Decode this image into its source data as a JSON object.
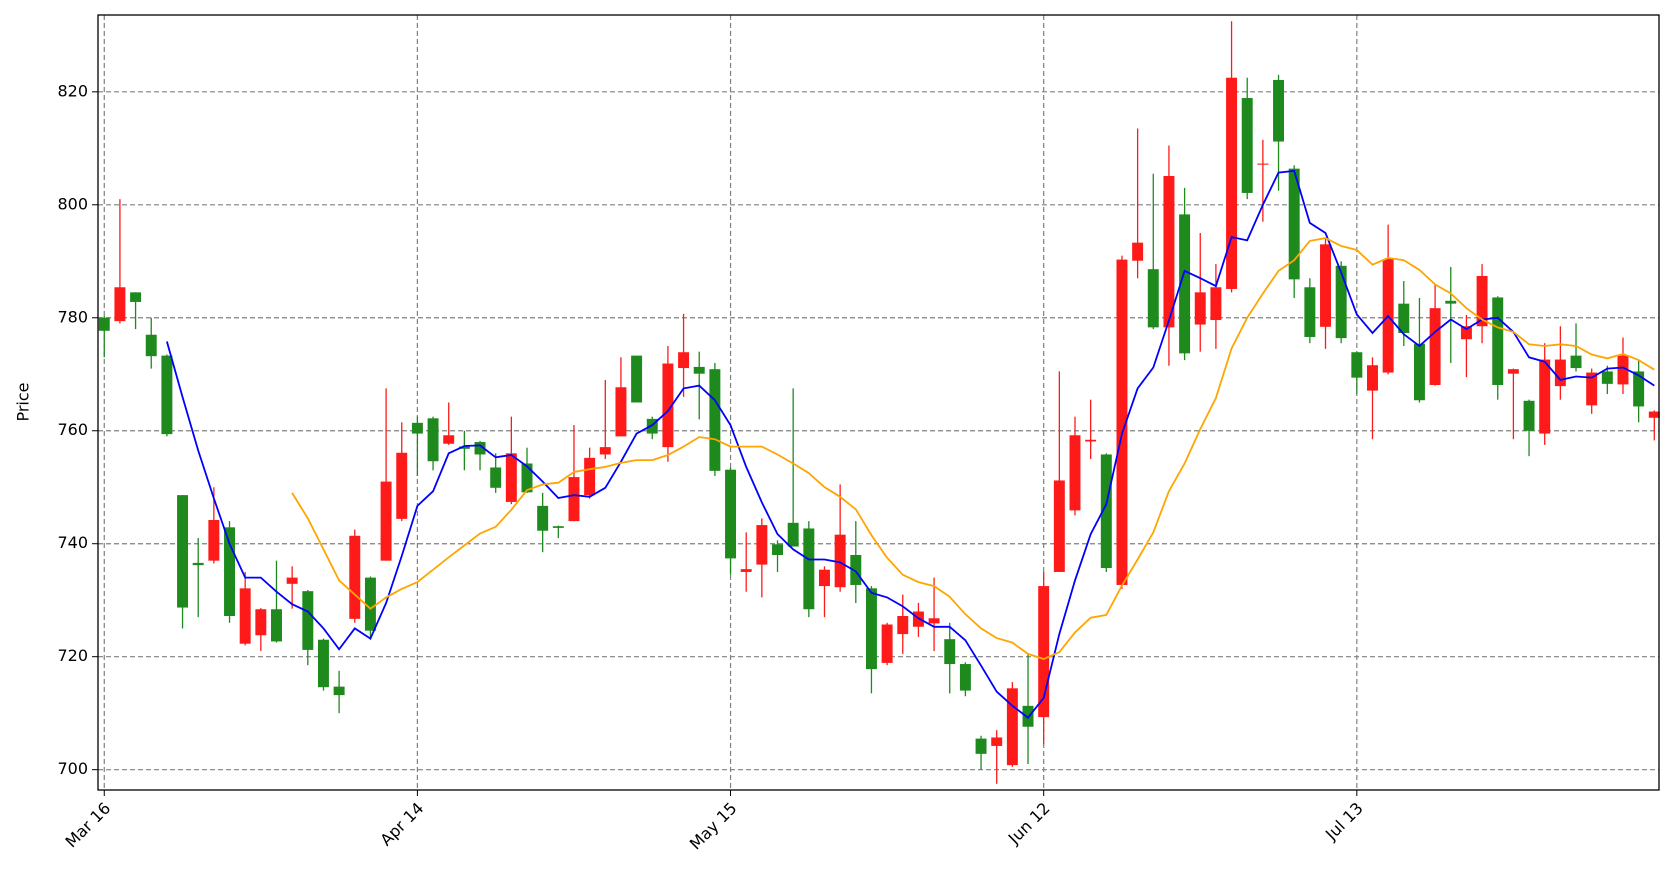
{
  "chart_data": {
    "type": "candlestick",
    "ylabel": "Price",
    "categories": [
      "Mar 16",
      null,
      null,
      null,
      null,
      null,
      null,
      null,
      null,
      null,
      null,
      null,
      null,
      null,
      null,
      null,
      null,
      null,
      null,
      null,
      "Apr 14",
      null,
      null,
      null,
      null,
      null,
      null,
      null,
      null,
      null,
      null,
      null,
      null,
      null,
      null,
      null,
      null,
      null,
      null,
      null,
      "May 15",
      null,
      null,
      null,
      null,
      null,
      null,
      null,
      null,
      null,
      null,
      null,
      null,
      null,
      null,
      null,
      null,
      null,
      null,
      null,
      "Jun 12",
      null,
      null,
      null,
      null,
      null,
      null,
      null,
      null,
      null,
      null,
      null,
      null,
      null,
      null,
      null,
      null,
      null,
      null,
      null,
      "Jul 13",
      null,
      null,
      null,
      null,
      null,
      null,
      null,
      null,
      null,
      null,
      null,
      null,
      null,
      null,
      null,
      null,
      null,
      null,
      null
    ],
    "open": [
      780,
      779.4,
      784.5,
      777,
      773.3,
      748.6,
      736.6,
      737,
      742.9,
      722.3,
      723.8,
      728.4,
      732.9,
      731.6,
      723,
      714.7,
      726.7,
      734,
      737,
      744.4,
      761.4,
      762.2,
      757.7,
      757.2,
      758,
      753.5,
      747.4,
      754.2,
      746.7,
      743.1,
      744,
      748.6,
      755.8,
      759,
      773.3,
      762.1,
      757.1,
      771.1,
      771.3,
      770.9,
      753.1,
      735,
      736.3,
      739.9,
      743.7,
      742.7,
      732.5,
      732.3,
      738,
      732.1,
      718.9,
      724,
      725.3,
      725.9,
      723.1,
      718.7,
      705.5,
      704.2,
      700.8,
      711.3,
      709.3,
      735,
      745.9,
      758.1,
      755.8,
      732.7,
      790.1,
      788.6,
      778.3,
      798.3,
      778.8,
      779.6,
      785.1,
      818.9,
      807.1,
      822.1,
      806.4,
      785.4,
      778.4,
      789.2,
      773.9,
      767.1,
      770.3,
      782.5,
      775.4,
      768.1,
      783,
      776.2,
      778.5,
      783.6,
      770.1,
      765.3,
      759.5,
      767.9,
      773.3,
      764.5,
      770.5,
      768.2,
      770.5,
      762.3
    ],
    "high": [
      780.3,
      801,
      784.5,
      780,
      773.5,
      748.6,
      741,
      750,
      744,
      735,
      728.6,
      737,
      736,
      731.8,
      723.2,
      717.5,
      742.5,
      734.2,
      767.5,
      761.5,
      762.5,
      762.5,
      765,
      760,
      758.2,
      756,
      762.5,
      757,
      749,
      743.2,
      761,
      757,
      769,
      773,
      773.3,
      762.5,
      775,
      780.7,
      774,
      772,
      753.5,
      742,
      744.5,
      740.6,
      767.5,
      744,
      736,
      750.5,
      744,
      732.5,
      726,
      731,
      729.5,
      734,
      726,
      719,
      706,
      707,
      715.5,
      720.5,
      735,
      770.5,
      762.5,
      765.5,
      756,
      791,
      813.5,
      805.5,
      810.5,
      803,
      795,
      789.5,
      832.5,
      822.5,
      811.5,
      823,
      807,
      787,
      794,
      790,
      774,
      773,
      796.5,
      786.5,
      783.5,
      786,
      789,
      780.5,
      789.5,
      783.8,
      771,
      765.5,
      775.5,
      778.5,
      779,
      771,
      771.5,
      776.5,
      772.5,
      763.6
    ],
    "low": [
      773,
      779,
      778,
      771,
      759,
      725,
      727,
      736.5,
      726,
      722,
      721,
      722.5,
      728.5,
      718.5,
      714,
      710,
      726,
      723,
      737,
      744,
      752,
      753,
      757.5,
      753,
      753,
      749,
      747,
      749,
      738.5,
      741,
      744,
      748,
      755,
      759,
      765,
      758.5,
      754.5,
      766,
      762,
      752,
      734.5,
      731.5,
      730.5,
      735,
      739.5,
      727,
      727,
      731.5,
      729.5,
      713.5,
      718.5,
      720.5,
      723.5,
      721,
      713.5,
      713,
      700,
      697.5,
      700.5,
      701,
      704.5,
      735,
      745,
      755,
      735,
      732,
      787,
      778,
      771.5,
      772.5,
      774,
      774.5,
      784.5,
      801,
      797,
      802.5,
      783.5,
      775.5,
      774.5,
      775.5,
      766.5,
      758.5,
      770,
      775,
      765,
      768,
      772,
      769.5,
      775.5,
      765.5,
      758.5,
      755.5,
      757.5,
      765.5,
      770.5,
      763,
      766.5,
      766.5,
      761.5,
      758.3
    ],
    "close": [
      777.7,
      785.4,
      782.8,
      773.2,
      759.4,
      728.7,
      736.2,
      744.2,
      727.2,
      732.1,
      728.4,
      722.7,
      734,
      721.2,
      714.6,
      713.2,
      741.4,
      724.6,
      751,
      756.1,
      759.5,
      754.6,
      759.2,
      756.8,
      755.8,
      749.9,
      756,
      749.1,
      742.3,
      742.8,
      751.8,
      755.2,
      757.1,
      767.7,
      765,
      759.5,
      771.9,
      773.9,
      770.1,
      752.9,
      737.4,
      735.5,
      743.3,
      738,
      739.5,
      728.4,
      735.4,
      741.6,
      732.7,
      717.8,
      725.7,
      727.2,
      728,
      726.8,
      718.7,
      714,
      702.8,
      705.7,
      714.4,
      707.6,
      732.5,
      751.2,
      759.2,
      758.4,
      735.7,
      790.3,
      793.3,
      778.3,
      805.1,
      773.7,
      784.5,
      785.4,
      822.5,
      802.1,
      807.3,
      811.2,
      786.8,
      776.6,
      793,
      776.4,
      769.4,
      771.6,
      790.4,
      777.3,
      765.4,
      781.7,
      782.5,
      778.5,
      787.4,
      768.1,
      770.9,
      760,
      772.6,
      772.6,
      771.1,
      770.3,
      768.3,
      773.3,
      764.3,
      763.4
    ],
    "up_color": "#ff1a1a",
    "down_color": "#1e8a1e",
    "lines": [
      {
        "color": "#0000ff",
        "values": [
          null,
          null,
          null,
          null,
          775.8,
          766,
          756.5,
          748,
          740,
          734,
          734,
          731.5,
          729.3,
          728,
          725,
          721.3,
          725,
          723.2,
          729.5,
          737.8,
          746.7,
          749.3,
          756,
          757.3,
          757.4,
          755.3,
          755.7,
          753.7,
          751,
          748.1,
          748.6,
          748.3,
          749.9,
          754.5,
          759.5,
          761,
          763.5,
          767.5,
          768,
          765.4,
          761,
          753.6,
          747.3,
          741.7,
          739,
          737.2,
          737.2,
          736.7,
          735.1,
          731.3,
          730.5,
          728.9,
          726.8,
          725.3,
          725.3,
          722.9,
          718.4,
          713.8,
          711.3,
          709.2,
          712.7,
          724,
          733.5,
          741.7,
          747,
          759.5,
          767.5,
          771.2,
          779.5,
          788.3,
          787,
          785.6,
          794.3,
          793.7,
          800,
          805.7,
          806,
          796.8,
          795,
          788,
          780.6,
          777.3,
          780.3,
          777.1,
          775,
          777.5,
          779.7,
          778,
          779.7,
          780,
          777.5,
          773,
          772.2,
          769,
          769.6,
          769.4,
          771,
          771.2,
          769.8,
          768
        ]
      },
      {
        "color": "#ffa500",
        "values": [
          null,
          null,
          null,
          null,
          null,
          null,
          null,
          null,
          null,
          null,
          null,
          null,
          749,
          744.5,
          739,
          733.5,
          731,
          728.5,
          730.5,
          732,
          733.2,
          735.4,
          737.6,
          739.7,
          741.8,
          743,
          746,
          749.5,
          750.5,
          750.8,
          752.7,
          753.2,
          753.6,
          754.3,
          754.8,
          754.8,
          755.7,
          757.2,
          758.9,
          758.5,
          757.2,
          757.2,
          757.2,
          755.8,
          754.2,
          752.5,
          750,
          748.3,
          746.1,
          741.5,
          737.5,
          734.5,
          733.2,
          732.5,
          730.6,
          727.5,
          725,
          723.3,
          722.5,
          720.5,
          719.6,
          720.8,
          724.3,
          726.9,
          727.4,
          732.6,
          737.2,
          742,
          749.3,
          754.2,
          760.3,
          765.8,
          774.6,
          780,
          784.3,
          788.3,
          790.2,
          793.6,
          794.1,
          792.7,
          792,
          789.4,
          790.6,
          790.2,
          788.5,
          785.9,
          784.3,
          781.7,
          779.7,
          778.3,
          777.5,
          775.3,
          775,
          775.3,
          775,
          773.5,
          772.8,
          773.6,
          772.5,
          770.8
        ]
      }
    ],
    "ylim": [
      696.4,
      833.6
    ],
    "yticks": [
      700,
      720,
      740,
      760,
      780,
      800,
      820
    ],
    "grid": true
  }
}
